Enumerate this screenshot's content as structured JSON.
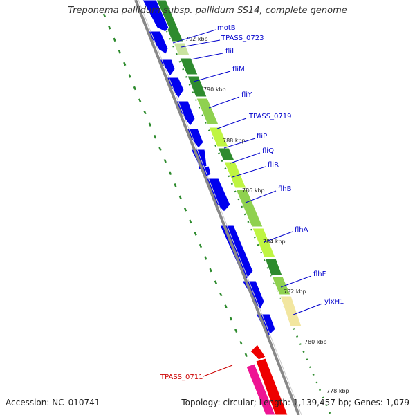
{
  "title": "Treponema pallidum subsp. pallidum SS14, complete genome",
  "accession": "Accession: NC_010741",
  "topology": "Topology: circular; Length: 1,139,457 bp; Genes: 1,079",
  "colors": {
    "backbone": "#888888",
    "forward_gene": "#0000ee",
    "reverse_gene": "#ee0000",
    "reverse_gene_cds": "#ee1493",
    "cds_dark": "#2e8b2e",
    "cds_light": "#8fd14f",
    "cds_lime": "#bff542",
    "cds_tan": "#f2e6a0",
    "gc_dots": "#2e8b2e",
    "label_forward": "#0000cc",
    "label_reverse": "#cc0000"
  },
  "scale_labels": [
    "792 kbp",
    "790 kbp",
    "788 kbp",
    "786 kbp",
    "784 kbp",
    "782 kbp",
    "780 kbp",
    "778 kbp"
  ],
  "gene_labels": [
    {
      "name": "motB",
      "strand": "forward"
    },
    {
      "name": "TPASS_0723",
      "strand": "forward"
    },
    {
      "name": "fliL",
      "strand": "forward"
    },
    {
      "name": "fliM",
      "strand": "forward"
    },
    {
      "name": "fliY",
      "strand": "forward"
    },
    {
      "name": "TPASS_0719",
      "strand": "forward"
    },
    {
      "name": "fliP",
      "strand": "forward"
    },
    {
      "name": "fliQ",
      "strand": "forward"
    },
    {
      "name": "fliR",
      "strand": "forward"
    },
    {
      "name": "flhB",
      "strand": "forward"
    },
    {
      "name": "flhA",
      "strand": "forward"
    },
    {
      "name": "flhF",
      "strand": "forward"
    },
    {
      "name": "ylxH1",
      "strand": "forward"
    },
    {
      "name": "TPASS_0711",
      "strand": "reverse"
    }
  ]
}
